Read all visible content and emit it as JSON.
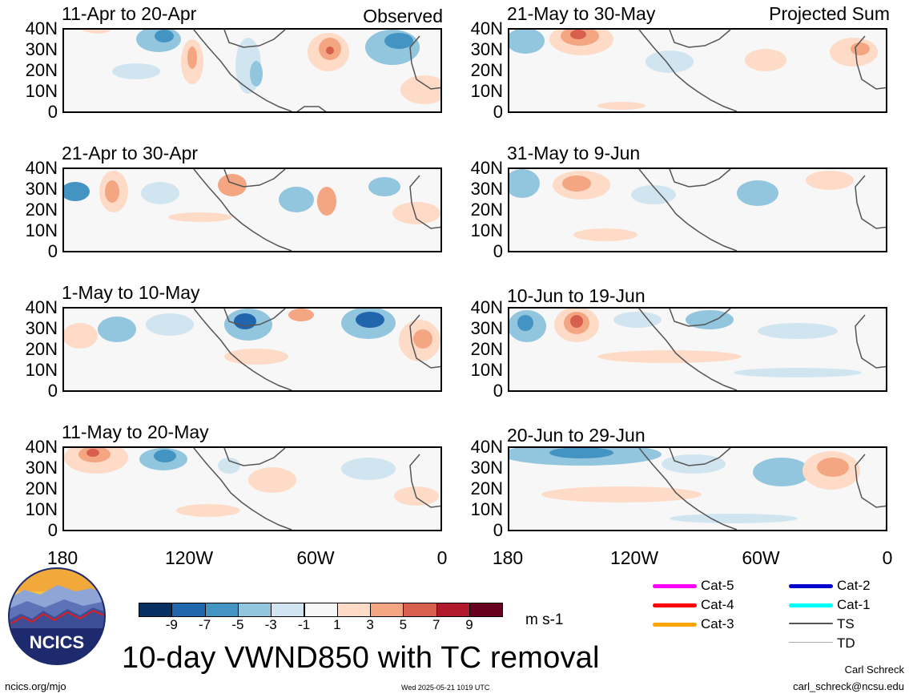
{
  "panels": {
    "left_tag": "Observed",
    "right_tag": "Projected Sum",
    "left": [
      "11-Apr to 20-Apr",
      "21-Apr to 30-Apr",
      "1-May to 10-May",
      "11-May to 20-May"
    ],
    "right": [
      "21-May to 30-May",
      "31-May to 9-Jun",
      "10-Jun to 19-Jun",
      "20-Jun to 29-Jun"
    ]
  },
  "axes": {
    "y_ticks": [
      "40N",
      "30N",
      "20N",
      "10N",
      "0"
    ],
    "x_ticks": [
      "180",
      "120W",
      "60W",
      "0"
    ]
  },
  "colorbar": {
    "labels": [
      "-9",
      "-7",
      "-5",
      "-3",
      "-1",
      "1",
      "3",
      "5",
      "7",
      "9"
    ],
    "colors": [
      "#053061",
      "#2166ac",
      "#4393c3",
      "#92c5de",
      "#d1e5f0",
      "#f7f7f7",
      "#fddbc7",
      "#f4a582",
      "#d6604d",
      "#b2182b",
      "#67001f"
    ],
    "unit": "m s-1"
  },
  "legend": [
    {
      "label": "Cat-5",
      "color": "#ff00ff"
    },
    {
      "label": "Cat-4",
      "color": "#ff0000"
    },
    {
      "label": "Cat-3",
      "color": "#ffa500"
    },
    {
      "label": "Cat-2",
      "color": "#0000cd"
    },
    {
      "label": "Cat-1",
      "color": "#00ffff"
    },
    {
      "label": "TS",
      "color": "#555555"
    },
    {
      "label": "TD",
      "color": "#aaaaaa"
    }
  ],
  "logo": {
    "text": "NCICS"
  },
  "title": "10-day VWND850 with TC removal",
  "footer": {
    "url": "ncics.org/mjo",
    "timestamp": "Wed 2025-05-21 1019 UTC",
    "author": "Carl Schreck",
    "email": "carl_schreck@ncsu.edu"
  }
}
